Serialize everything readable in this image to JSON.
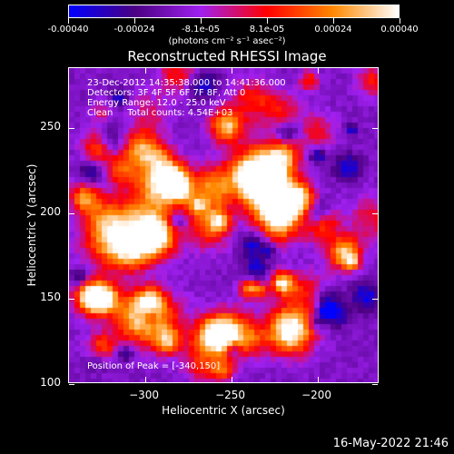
{
  "colorbar": {
    "labels": [
      "-0.00040",
      "-0.00024",
      "-8.1e-05",
      "8.1e-05",
      "0.00024",
      "0.00040"
    ],
    "units": "(photons cm⁻² s⁻¹ asec⁻²)"
  },
  "chart_data": {
    "type": "heatmap",
    "title": "Reconstructed RHESSI Image",
    "xlabel": "Heliocentric X (arcsec)",
    "ylabel": "Heliocentric Y (arcsec)",
    "xlim": [
      -344,
      -164
    ],
    "ylim": [
      100,
      285
    ],
    "x_ticks": [
      "-300",
      "-250",
      "-200"
    ],
    "y_ticks": [
      "250",
      "200",
      "150",
      "100"
    ],
    "value_range": [
      -0.0004,
      0.0004
    ],
    "colormap": [
      "#0000ff",
      "#4b0082",
      "#a020f0",
      "#ff0000",
      "#ff8800",
      "#ffffff"
    ],
    "annotation_lines": [
      "23-Dec-2012 14:35:38.000 to 14:41:36.000",
      "Detectors: 3F 4F 5F 6F 7F 8F, Att 0",
      "Energy Range: 12.0 - 25.0 keV",
      "Clean     Total counts: 4.54E+03"
    ],
    "peak_text": "Position of Peak = [-340,150]"
  },
  "footer": "16-May-2022 21:46"
}
